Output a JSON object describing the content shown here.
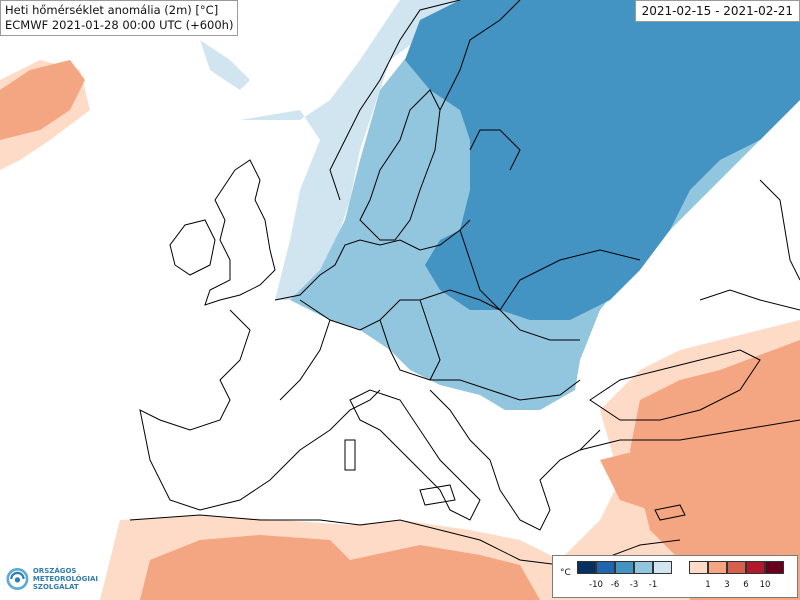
{
  "title": {
    "line1": "Heti hőmérséklet anomália (2m) [°C]",
    "line2": "ECMWF 2021-01-28 00:00 UTC (+600h)"
  },
  "date_range": "2021-02-15 - 2021-02-21",
  "logo": {
    "icon": "omsz-swirl-icon",
    "line1": "ORSZÁGOS",
    "line2": "METEOROLÓGIAI",
    "line3": "SZOLGÁLAT"
  },
  "legend": {
    "unit": "°C",
    "cold_labels": [
      "-10",
      "-6",
      "-3",
      "-1"
    ],
    "warm_labels": [
      "1",
      "3",
      "6",
      "10"
    ],
    "cold_colors": [
      "#053061",
      "#2166ac",
      "#4393c3",
      "#92c5de",
      "#d1e5f0"
    ],
    "warm_colors": [
      "#fddbc7",
      "#f4a582",
      "#d6604d",
      "#b2182b",
      "#67001f"
    ]
  },
  "colors": {
    "background": "#ffffff",
    "border": "#000000"
  }
}
